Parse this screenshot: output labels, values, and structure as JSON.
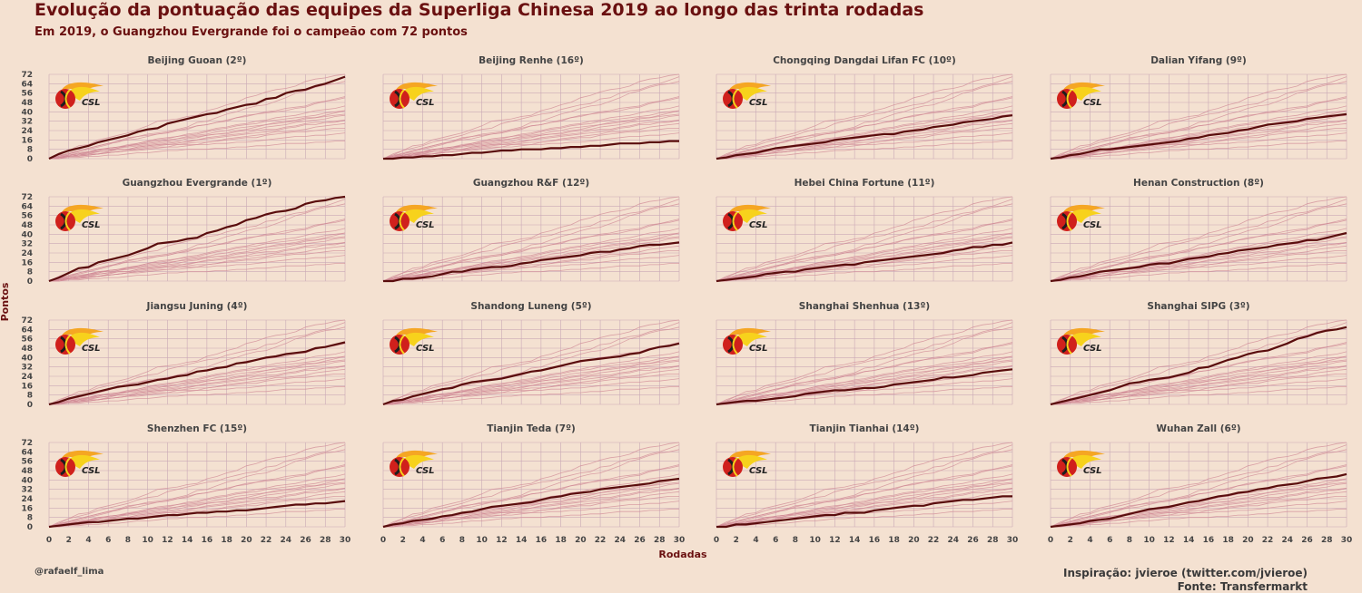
{
  "title": "Evolução da pontuação das equipes da Superliga Chinesa 2019 ao longo das trinta rodadas",
  "subtitle": "Em 2019, o Guangzhou Evergrande foi o campeão com 72 pontos",
  "credit": "@rafaelf_lima",
  "inspiration": "Inspiração: jvieroe (twitter.com/jvieroe)",
  "source": "Fonte: Transfermarkt",
  "logo_text": "CSL",
  "colors": {
    "background": "#f4e1d1",
    "highlight": "#5a0d0d",
    "others": "#d08a95",
    "grid": "#c9a9b6",
    "title": "#6a1010"
  },
  "chart_data": {
    "type": "line",
    "xlabel": "Rodadas",
    "ylabel": "Pontos",
    "xlim": [
      0,
      30
    ],
    "ylim": [
      0,
      72
    ],
    "xticks": [
      0,
      2,
      4,
      6,
      8,
      10,
      12,
      14,
      16,
      18,
      20,
      22,
      24,
      26,
      28,
      30
    ],
    "yticks": [
      0,
      8,
      16,
      24,
      32,
      40,
      48,
      56,
      64,
      72
    ],
    "grid": true,
    "panels": [
      {
        "name": "Beijing Guoan (2º)",
        "final": 70
      },
      {
        "name": "Beijing Renhe (16º)",
        "final": 15
      },
      {
        "name": "Chongqing Dangdai Lifan FC (10º)",
        "final": 37
      },
      {
        "name": "Dalian Yifang (9º)",
        "final": 38
      },
      {
        "name": "Guangzhou Evergrande (1º)",
        "final": 72
      },
      {
        "name": "Guangzhou R&F (12º)",
        "final": 33
      },
      {
        "name": "Hebei China Fortune (11º)",
        "final": 33
      },
      {
        "name": "Henan Construction (8º)",
        "final": 41
      },
      {
        "name": "Jiangsu Juning (4º)",
        "final": 53
      },
      {
        "name": "Shandong Luneng (5º)",
        "final": 52
      },
      {
        "name": "Shanghai Shenhua (13º)",
        "final": 30
      },
      {
        "name": "Shanghai SIPG (3º)",
        "final": 66
      },
      {
        "name": "Shenzhen FC (15º)",
        "final": 22
      },
      {
        "name": "Tianjin Teda (7º)",
        "final": 41
      },
      {
        "name": "Tianjin Tianhai (14º)",
        "final": 26
      },
      {
        "name": "Wuhan Zall (6º)",
        "final": 45
      }
    ]
  }
}
